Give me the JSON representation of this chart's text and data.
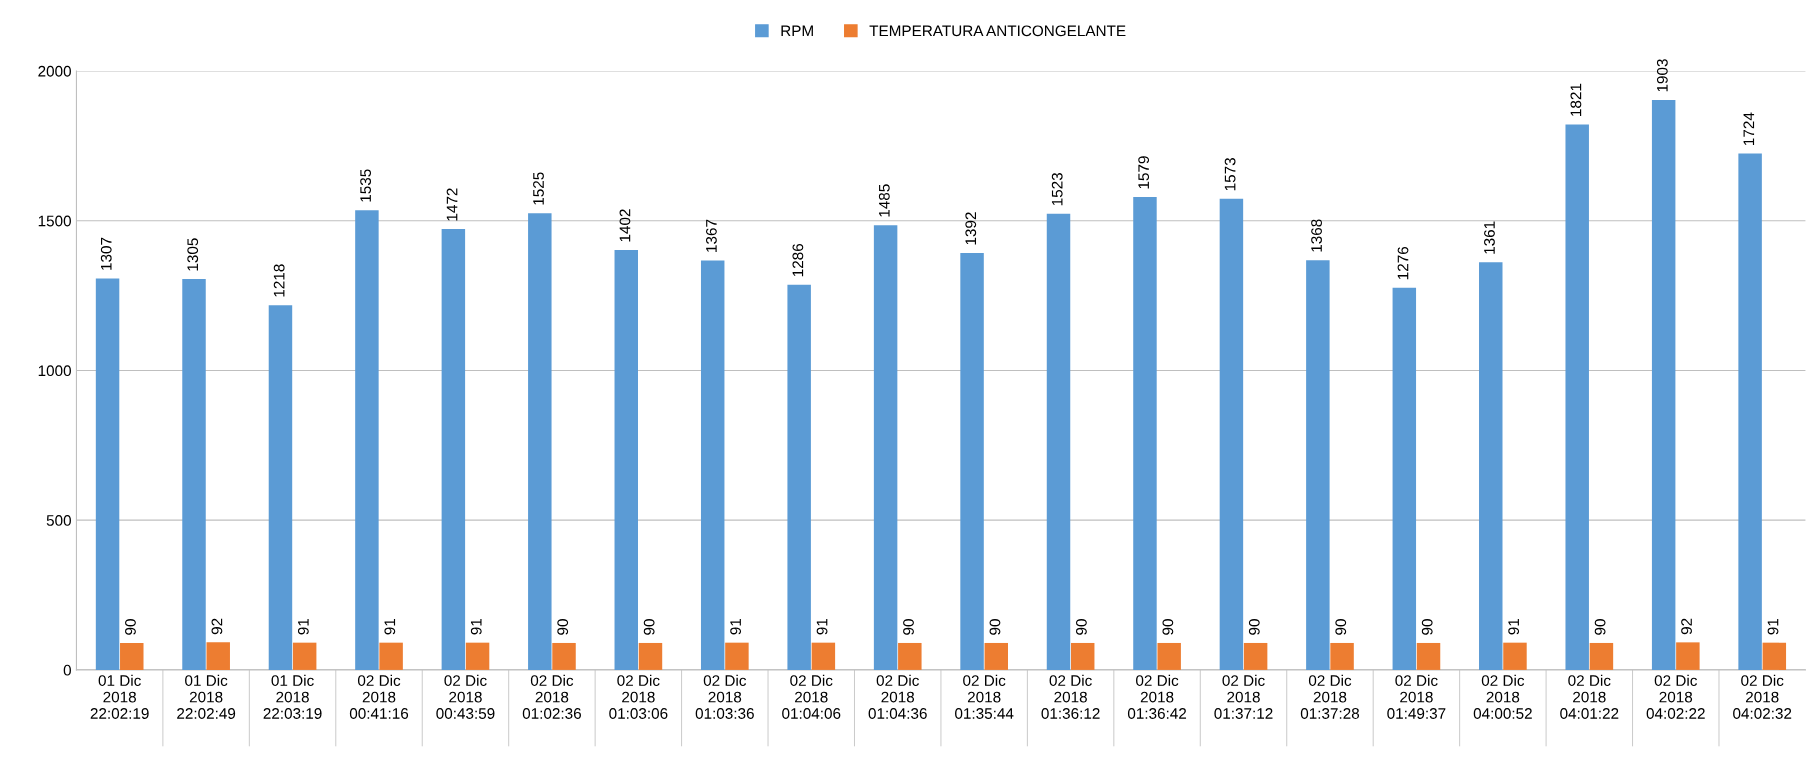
{
  "chart_data": {
    "type": "bar",
    "categories": [
      "01 Dic\n2018\n22:02:19",
      "01 Dic\n2018\n22:02:49",
      "01 Dic\n2018\n22:03:19",
      "02 Dic\n2018\n00:41:16",
      "02 Dic\n2018\n00:43:59",
      "02 Dic\n2018\n01:02:36",
      "02 Dic\n2018\n01:03:06",
      "02 Dic\n2018\n01:03:36",
      "02 Dic\n2018\n01:04:06",
      "02 Dic\n2018\n01:04:36",
      "02 Dic\n2018\n01:35:44",
      "02 Dic\n2018\n01:36:12",
      "02 Dic\n2018\n01:36:42",
      "02 Dic\n2018\n01:37:12",
      "02 Dic\n2018\n01:37:28",
      "02 Dic\n2018\n01:49:37",
      "02 Dic\n2018\n04:00:52",
      "02 Dic\n2018\n04:01:22",
      "02 Dic\n2018\n04:02:22",
      "02 Dic\n2018\n04:02:32"
    ],
    "series": [
      {
        "name": "RPM",
        "color": "#5b9bd5",
        "values": [
          1307,
          1305,
          1218,
          1535,
          1472,
          1525,
          1402,
          1367,
          1286,
          1485,
          1392,
          1523,
          1579,
          1573,
          1368,
          1276,
          1361,
          1821,
          1903,
          1724
        ]
      },
      {
        "name": "TEMPERATURA ANTICONGELANTE",
        "color": "#ed7d31",
        "values": [
          90,
          92,
          91,
          91,
          91,
          90,
          90,
          91,
          91,
          90,
          90,
          90,
          90,
          90,
          90,
          90,
          91,
          90,
          92,
          91
        ]
      }
    ],
    "ylim": [
      0,
      2000
    ],
    "yticks": [
      0,
      500,
      1000,
      1500,
      2000
    ],
    "grid": "y",
    "legend": "top",
    "data_labels": true
  }
}
